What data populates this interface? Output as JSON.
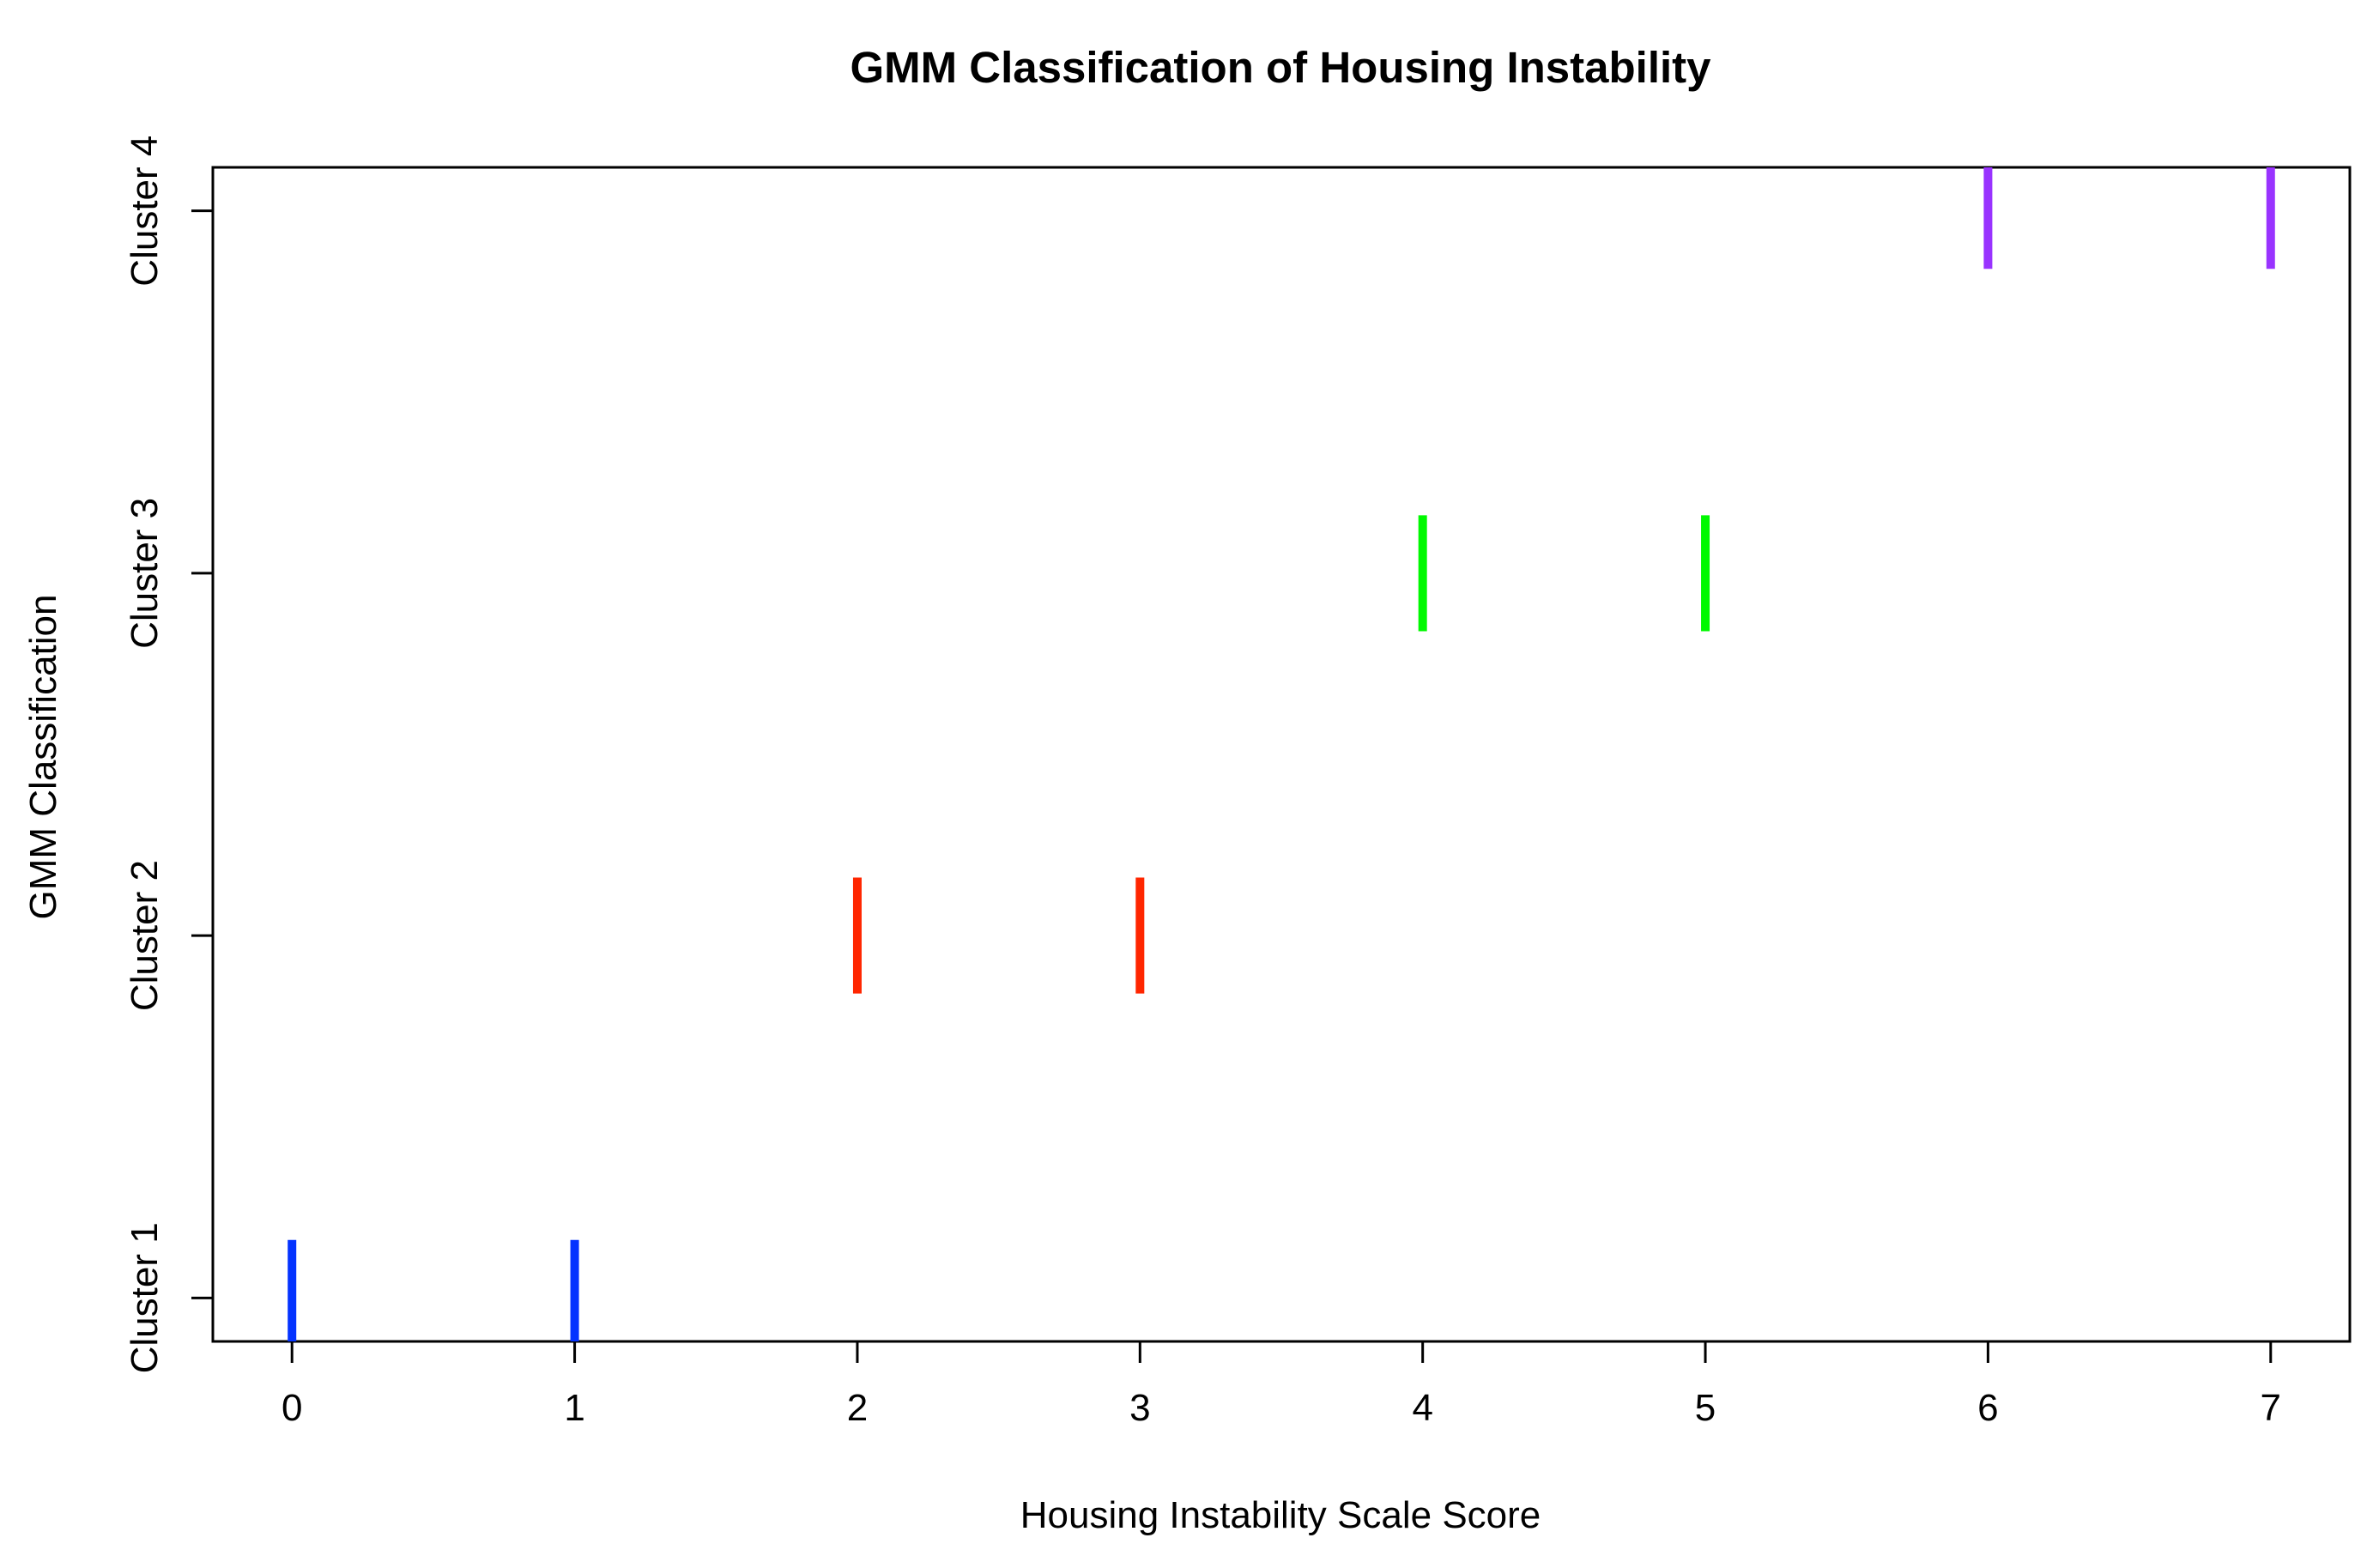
{
  "chart_data": {
    "type": "scatter",
    "marker": "vertical-bar",
    "title": "GMM Classification of Housing Instability",
    "xlabel": "Housing Instability Scale Score",
    "ylabel": "GMM Classification",
    "xlim": [
      -0.28,
      7.28
    ],
    "ylim": [
      0.88,
      4.12
    ],
    "x_ticks": [
      "0",
      "1",
      "2",
      "3",
      "4",
      "5",
      "6",
      "7"
    ],
    "y_ticks": [
      "Cluster 1",
      "Cluster 2",
      "Cluster 3",
      "Cluster 4"
    ],
    "grid": false,
    "series": [
      {
        "x": [
          0,
          1
        ],
        "y": [
          1,
          1
        ],
        "color": "#0433ff"
      },
      {
        "x": [
          2,
          3
        ],
        "y": [
          2,
          2
        ],
        "color": "#ff2600"
      },
      {
        "x": [
          4,
          5
        ],
        "y": [
          3,
          3
        ],
        "color": "#00f900"
      },
      {
        "x": [
          6,
          7
        ],
        "y": [
          4,
          4
        ],
        "color": "#9933ff"
      }
    ]
  }
}
